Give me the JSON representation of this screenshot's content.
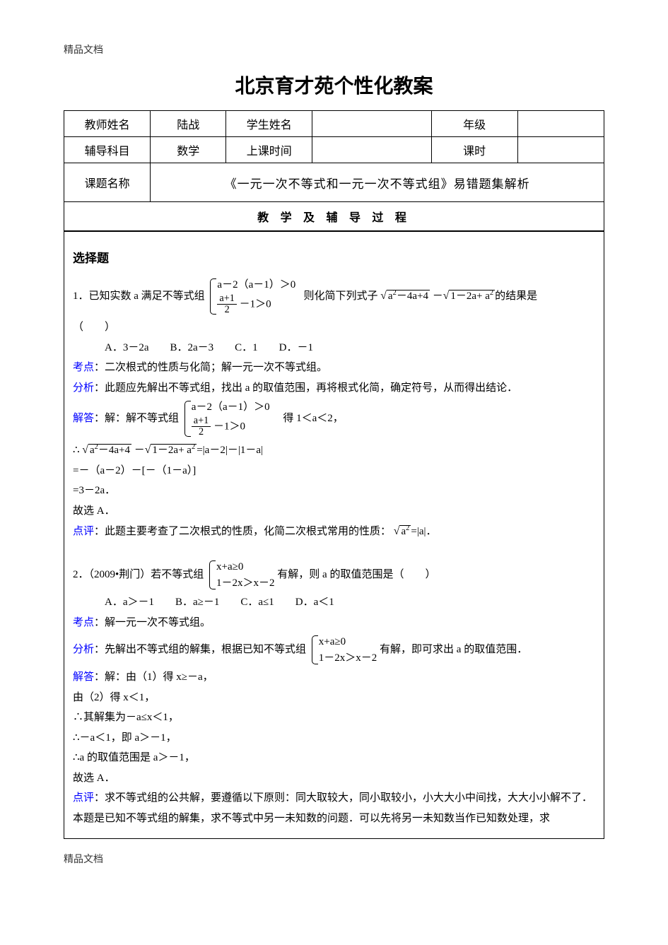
{
  "header_note": "精品文档",
  "footer_note": "精品文档",
  "title": "北京育才苑个性化教案",
  "meta": {
    "rows": [
      {
        "cells": [
          {
            "t": "教师姓名",
            "w": "16%",
            "bold": true
          },
          {
            "t": "陆战",
            "w": "14%"
          },
          {
            "t": "学生姓名",
            "w": "16%",
            "bold": true
          },
          {
            "t": "",
            "w": "22%"
          },
          {
            "t": "年级",
            "w": "16%",
            "bold": true
          },
          {
            "t": "",
            "w": "16%"
          }
        ]
      },
      {
        "cells": [
          {
            "t": "辅导科目",
            "bold": true
          },
          {
            "t": "数学"
          },
          {
            "t": "上课时间",
            "bold": true
          },
          {
            "t": ""
          },
          {
            "t": "课时",
            "bold": true
          },
          {
            "t": ""
          }
        ]
      },
      {
        "cells": [
          {
            "t": "课题名称",
            "bold": true,
            "span": 1,
            "w": "16%"
          },
          {
            "t": "《一元一次不等式和一元一次不等式组》易错题集解析",
            "span": 5,
            "course": true
          }
        ]
      }
    ]
  },
  "section_header": "教 学 及 辅 导 过 程",
  "sec_heading": "选择题",
  "q1": {
    "stem_a": "1．已知实数 a 满足不等式组",
    "case1a": "a－2（a－1）＞0",
    "case1b_num": "a+1",
    "case1b_den": "2",
    "case1b_tail": " －1＞0",
    "stem_b": "则化简下列式子",
    "rad1": "a",
    "rad1_tail": "－4a+4",
    "rad2": "1－2a+ a",
    "stem_c": "的结果是",
    "paren": "（　　）",
    "choices": "A．3－2a　　B．2a－3　　C．1　　D．－1",
    "topic_label": "考点",
    "topic": "：二次根式的性质与化简；解一元一次不等式组。",
    "analysis_label": "分析",
    "analysis": "：此题应先解出不等式组，找出 a 的取值范围，再将根式化简，确定符号，从而得出结论．",
    "solve_label": "解答",
    "solve_a": "：解：解不等式组",
    "solve_case1a": "a－2（a－1）＞0",
    "solve_case1b_num": "a+1",
    "solve_case1b_den": "2",
    "solve_case1b_tail": " －1＞0",
    "solve_b": "　得 1＜a＜2，",
    "line_therefore": "∴",
    "rad_eq_tail": "=|a－2|－|1－a|",
    "line_eq1": "=－（a－2）－[－（1－a）]",
    "line_eq2": "=3－2a．",
    "line_ans": "故选 A．",
    "review_label": "点评",
    "review_a": "：此题主要考查了二次根式的性质，化简二次根式常用的性质：",
    "review_rad": "a",
    "review_tail": "=|a|．"
  },
  "q2": {
    "stem_a": "2．（2009•荆门）若不等式组",
    "case1a": "x+a≥0",
    "case1b": "1－2x＞x－2",
    "stem_b": " 有解，则 a 的取值范围是（　　）",
    "choices": "A．a＞－1　　B．a≥－1　　C．a≤1　　D．a＜1",
    "topic_label": "考点",
    "topic": "：解一元一次不等式组。",
    "analysis_label": "分析",
    "analysis_a": "：先解出不等式组的解集，根据已知不等式组",
    "analysis_case1a": "x+a≥0",
    "analysis_case1b": "1－2x＞x－2",
    "analysis_b": " 有解，即可求出 a 的取值范围．",
    "solve_label": "解答",
    "solve_l1": "：解：由（1）得 x≥－a，",
    "solve_l2": "由（2）得 x＜1，",
    "solve_l3": "∴其解集为－a≤x＜1，",
    "solve_l4": "∴－a＜1，即 a＞－1，",
    "solve_l5": "∴a 的取值范围是 a＞－1，",
    "solve_l6": "故选 A．",
    "review_label": "点评",
    "review_l1": "：求不等式组的公共解，要遵循以下原则：同大取较大，同小取较小，小大大小中间找，大大小小解不了．",
    "review_l2": "本题是已知不等式组的解集，求不等式中另一未知数的问题．可以先将另一未知数当作已知数处理，求"
  },
  "colors": {
    "text": "#000000",
    "link": "#0000ff",
    "border": "#000000",
    "background": "#ffffff"
  }
}
